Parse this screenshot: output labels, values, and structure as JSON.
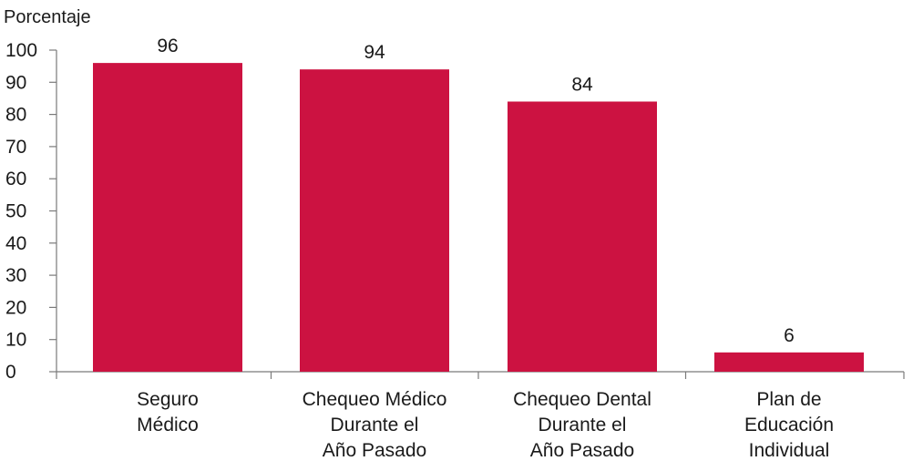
{
  "chart_data": {
    "type": "bar",
    "ylabel": "Porcentaje",
    "xlabel": "",
    "title": "",
    "ylim": [
      0,
      100
    ],
    "yticks": [
      "0",
      "10",
      "20",
      "30",
      "40",
      "50",
      "60",
      "70",
      "80",
      "90",
      "100"
    ],
    "categories": [
      [
        "Seguro",
        "Médico"
      ],
      [
        "Chequeo Médico",
        "Durante el",
        "Año Pasado"
      ],
      [
        "Chequeo Dental",
        "Durante el",
        "Año Pasado"
      ],
      [
        "Plan de",
        "Educación",
        "Individual"
      ]
    ],
    "values": [
      96,
      94,
      84,
      6
    ],
    "value_labels": [
      "96",
      "94",
      "84",
      "6"
    ],
    "bar_color": "#cc1241",
    "grid": false,
    "legend": "none"
  }
}
